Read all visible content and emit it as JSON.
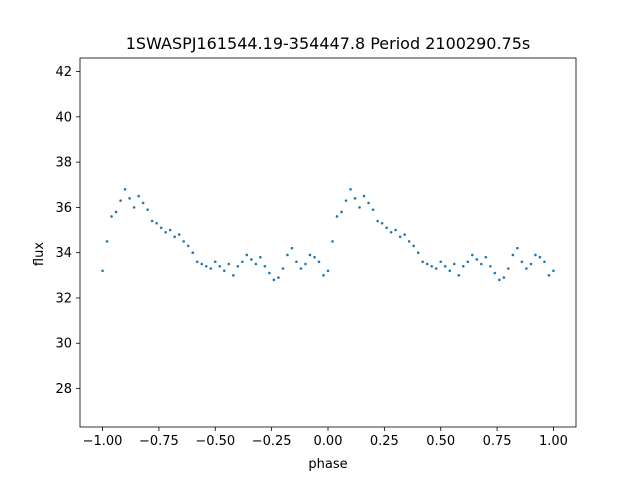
{
  "chart_data": {
    "type": "scatter",
    "title": "1SWASPJ161544.19-354447.8 Period 2100290.75s",
    "xlabel": "phase",
    "ylabel": "flux",
    "xlim": [
      -1.1,
      1.1
    ],
    "ylim": [
      26.3,
      42.6
    ],
    "xticks": [
      -1.0,
      -0.75,
      -0.5,
      -0.25,
      0.0,
      0.25,
      0.5,
      0.75,
      1.0
    ],
    "xtick_labels": [
      "−1.00",
      "−0.75",
      "−0.50",
      "−0.25",
      "0.00",
      "0.25",
      "0.50",
      "0.75",
      "1.00"
    ],
    "yticks": [
      28,
      30,
      32,
      34,
      36,
      38,
      40,
      42
    ],
    "ytick_labels": [
      "28",
      "30",
      "32",
      "34",
      "36",
      "38",
      "40",
      "42"
    ],
    "grid": false,
    "legend": "none",
    "marker_color": "#1f77b4",
    "series": [
      {
        "x": [
          -1.0,
          -0.98,
          -0.96,
          -0.94,
          -0.92,
          -0.9,
          -0.88,
          -0.86,
          -0.84,
          -0.82,
          -0.8,
          -0.78,
          -0.76,
          -0.74,
          -0.72,
          -0.7,
          -0.68,
          -0.66,
          -0.64,
          -0.62,
          -0.6,
          -0.58,
          -0.56,
          -0.54,
          -0.52,
          -0.5,
          -0.48,
          -0.46,
          -0.44,
          -0.42,
          -0.4,
          -0.38,
          -0.36,
          -0.34,
          -0.32,
          -0.3,
          -0.28,
          -0.26,
          -0.24,
          -0.22,
          -0.2,
          -0.18,
          -0.16,
          -0.14,
          -0.12,
          -0.1,
          -0.08,
          -0.06,
          -0.04,
          -0.02,
          0.0,
          0.02,
          0.04,
          0.06,
          0.08,
          0.1,
          0.12,
          0.14,
          0.16,
          0.18,
          0.2,
          0.22,
          0.24,
          0.26,
          0.28,
          0.3,
          0.32,
          0.34,
          0.36,
          0.38,
          0.4,
          0.42,
          0.44,
          0.46,
          0.48,
          0.5,
          0.52,
          0.54,
          0.56,
          0.58,
          0.6,
          0.62,
          0.64,
          0.66,
          0.68,
          0.7,
          0.72,
          0.74,
          0.76,
          0.78,
          0.8,
          0.82,
          0.84,
          0.86,
          0.88,
          0.9,
          0.92,
          0.94,
          0.96,
          0.98,
          1.0
        ],
        "y": [
          33.2,
          34.5,
          35.6,
          35.8,
          36.3,
          36.8,
          36.4,
          36.0,
          36.5,
          36.2,
          35.9,
          35.4,
          35.3,
          35.1,
          34.9,
          35.0,
          34.7,
          34.8,
          34.5,
          34.3,
          34.0,
          33.6,
          33.5,
          33.4,
          33.3,
          33.6,
          33.4,
          33.2,
          33.5,
          33.0,
          33.4,
          33.6,
          33.9,
          33.7,
          33.5,
          33.8,
          33.4,
          33.1,
          32.8,
          32.9,
          33.3,
          33.9,
          34.2,
          33.6,
          33.3,
          33.5,
          33.9,
          33.8,
          33.6,
          33.0,
          33.2,
          34.5,
          35.6,
          35.8,
          36.3,
          36.8,
          36.4,
          36.0,
          36.5,
          36.2,
          35.9,
          35.4,
          35.3,
          35.1,
          34.9,
          35.0,
          34.7,
          34.8,
          34.5,
          34.3,
          34.0,
          33.6,
          33.5,
          33.4,
          33.3,
          33.6,
          33.4,
          33.2,
          33.5,
          33.0,
          33.4,
          33.6,
          33.9,
          33.7,
          33.5,
          33.8,
          33.4,
          33.1,
          32.8,
          32.9,
          33.3,
          33.9,
          34.2,
          33.6,
          33.3,
          33.5,
          33.9,
          33.8,
          33.6,
          33.0,
          33.2
        ]
      }
    ]
  }
}
